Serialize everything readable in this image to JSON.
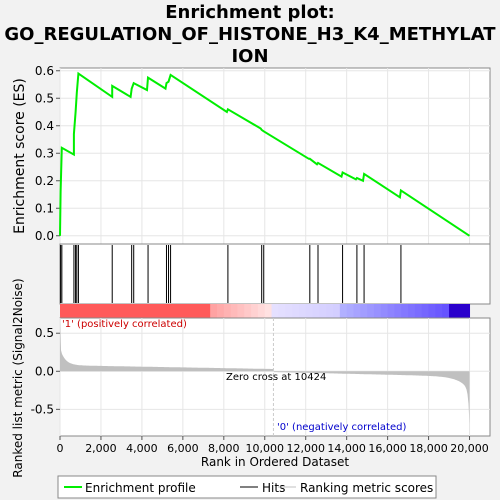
{
  "title_line1": "Enrichment plot:",
  "title_line2": "GO_REGULATION_OF_HISTONE_H3_K4_METHYLAT",
  "title_line3": "ION",
  "chart_data": {
    "type": "line",
    "es_ylabel": "Enrichment score (ES)",
    "es_yticks": [
      "0.0",
      "0.1",
      "0.2",
      "0.3",
      "0.4",
      "0.5",
      "0.6"
    ],
    "es_ylim": [
      -0.03,
      0.61
    ],
    "xlabel": "Rank in Ordered Dataset",
    "xticks": [
      "0",
      "2,000",
      "4,000",
      "6,000",
      "8,000",
      "10,000",
      "12,000",
      "14,000",
      "16,000",
      "18,000",
      "20,000"
    ],
    "xlim": [
      0,
      21000
    ],
    "metric_ylabel": "Ranked list metric (Signal2Noise)",
    "metric_yticks": [
      "0.5",
      "0.0",
      "-0.5"
    ],
    "metric_ylim": [
      -0.85,
      0.7
    ],
    "positive_label": "'1' (positively correlated)",
    "negative_label": "'0' (negatively correlated)",
    "zero_cross_label": "Zero cross at 10424",
    "zero_cross": 10424,
    "n_genes": 20000,
    "hits": [
      30,
      90,
      680,
      760,
      820,
      900,
      2550,
      3500,
      3600,
      4300,
      5200,
      5300,
      5400,
      8200,
      9850,
      9950,
      12200,
      12600,
      13800,
      14500,
      14850,
      16650
    ],
    "es_curve": [
      [
        0,
        0
      ],
      [
        30,
        0.16
      ],
      [
        90,
        0.32
      ],
      [
        680,
        0.295
      ],
      [
        680,
        0.37
      ],
      [
        760,
        0.45
      ],
      [
        820,
        0.52
      ],
      [
        900,
        0.59
      ],
      [
        2550,
        0.505
      ],
      [
        2550,
        0.545
      ],
      [
        3450,
        0.505
      ],
      [
        3500,
        0.535
      ],
      [
        3600,
        0.555
      ],
      [
        4250,
        0.53
      ],
      [
        4300,
        0.575
      ],
      [
        5150,
        0.535
      ],
      [
        5200,
        0.555
      ],
      [
        5300,
        0.56
      ],
      [
        5400,
        0.585
      ],
      [
        8150,
        0.45
      ],
      [
        8200,
        0.46
      ],
      [
        9800,
        0.39
      ],
      [
        9850,
        0.385
      ],
      [
        9950,
        0.38
      ],
      [
        12150,
        0.28
      ],
      [
        12200,
        0.28
      ],
      [
        12550,
        0.26
      ],
      [
        12600,
        0.265
      ],
      [
        13750,
        0.215
      ],
      [
        13800,
        0.23
      ],
      [
        14450,
        0.205
      ],
      [
        14500,
        0.21
      ],
      [
        14800,
        0.2
      ],
      [
        14850,
        0.225
      ],
      [
        16600,
        0.14
      ],
      [
        16650,
        0.165
      ],
      [
        20000,
        0.0
      ]
    ],
    "legend": [
      "Enrichment profile",
      "Hits",
      "Ranking metric scores"
    ],
    "colors": {
      "es": "#00ee00",
      "hits": "#000000",
      "metric": "#c0c0c0"
    }
  }
}
